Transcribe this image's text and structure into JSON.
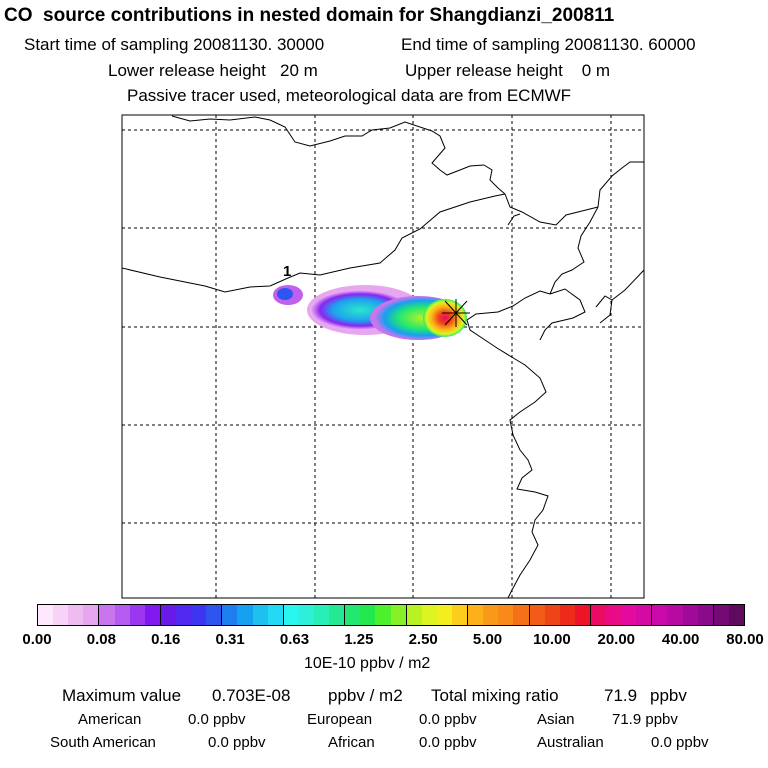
{
  "header": {
    "title": "CO  source contributions in nested domain for Shangdianzi_200811",
    "start_label": "Start time of sampling 20081130. 30000",
    "end_label": "End time of sampling 20081130. 60000",
    "lower_height": "Lower release height   20 m",
    "upper_height": "Upper release height    0 m",
    "note": "Passive tracer used, meteorological data are from ECMWF"
  },
  "map": {
    "contour_label": "1",
    "receptor_marker": "receptor-star"
  },
  "colorbar": {
    "ticks": [
      "0.00",
      "0.08",
      "0.16",
      "0.31",
      "0.63",
      "1.25",
      "2.50",
      "5.00",
      "10.00",
      "20.00",
      "40.00",
      "80.00"
    ],
    "units": "10E-10 ppbv / m2",
    "colors": [
      "#fde8fd",
      "#f7d4f7",
      "#efbcf2",
      "#e8a6f0",
      "#c875ee",
      "#b45cf0",
      "#9d36f0",
      "#8218f0",
      "#6a1ae8",
      "#5028ee",
      "#3d35f0",
      "#2f55f0",
      "#1e7ef0",
      "#16a0f0",
      "#1ec0f0",
      "#24d9f4",
      "#2af6f0",
      "#2ef0d9",
      "#28eeb7",
      "#25e895",
      "#22e870",
      "#20e84d",
      "#4df02d",
      "#88f028",
      "#b8f222",
      "#ddf420",
      "#f4ee1e",
      "#fccd1c",
      "#fcb11a",
      "#f89a18",
      "#f78a18",
      "#f57118",
      "#f25c18",
      "#ef4318",
      "#ee2a1a",
      "#ed1428",
      "#ec0a64",
      "#ea0a86",
      "#e40a9e",
      "#d50aa2",
      "#c90aa8",
      "#b60aa2",
      "#a00a98",
      "#8a0a8a",
      "#740a74",
      "#5e0a5e"
    ]
  },
  "summary": {
    "max_label": "Maximum value",
    "max_value": "0.703E-08",
    "max_unit": "ppbv / m2",
    "total_label": "Total mixing ratio",
    "total_value": "71.9",
    "total_unit": "ppbv",
    "rows": [
      [
        {
          "label": "American",
          "value": "0.0 ppbv"
        },
        {
          "label": "European",
          "value": "0.0 ppbv"
        },
        {
          "label": "Asian",
          "value": "71.9 ppbv"
        }
      ],
      [
        {
          "label": "South American",
          "value": "0.0 ppbv"
        },
        {
          "label": "African",
          "value": "0.0 ppbv"
        },
        {
          "label": "Australian",
          "value": "0.0 ppbv"
        }
      ]
    ]
  }
}
